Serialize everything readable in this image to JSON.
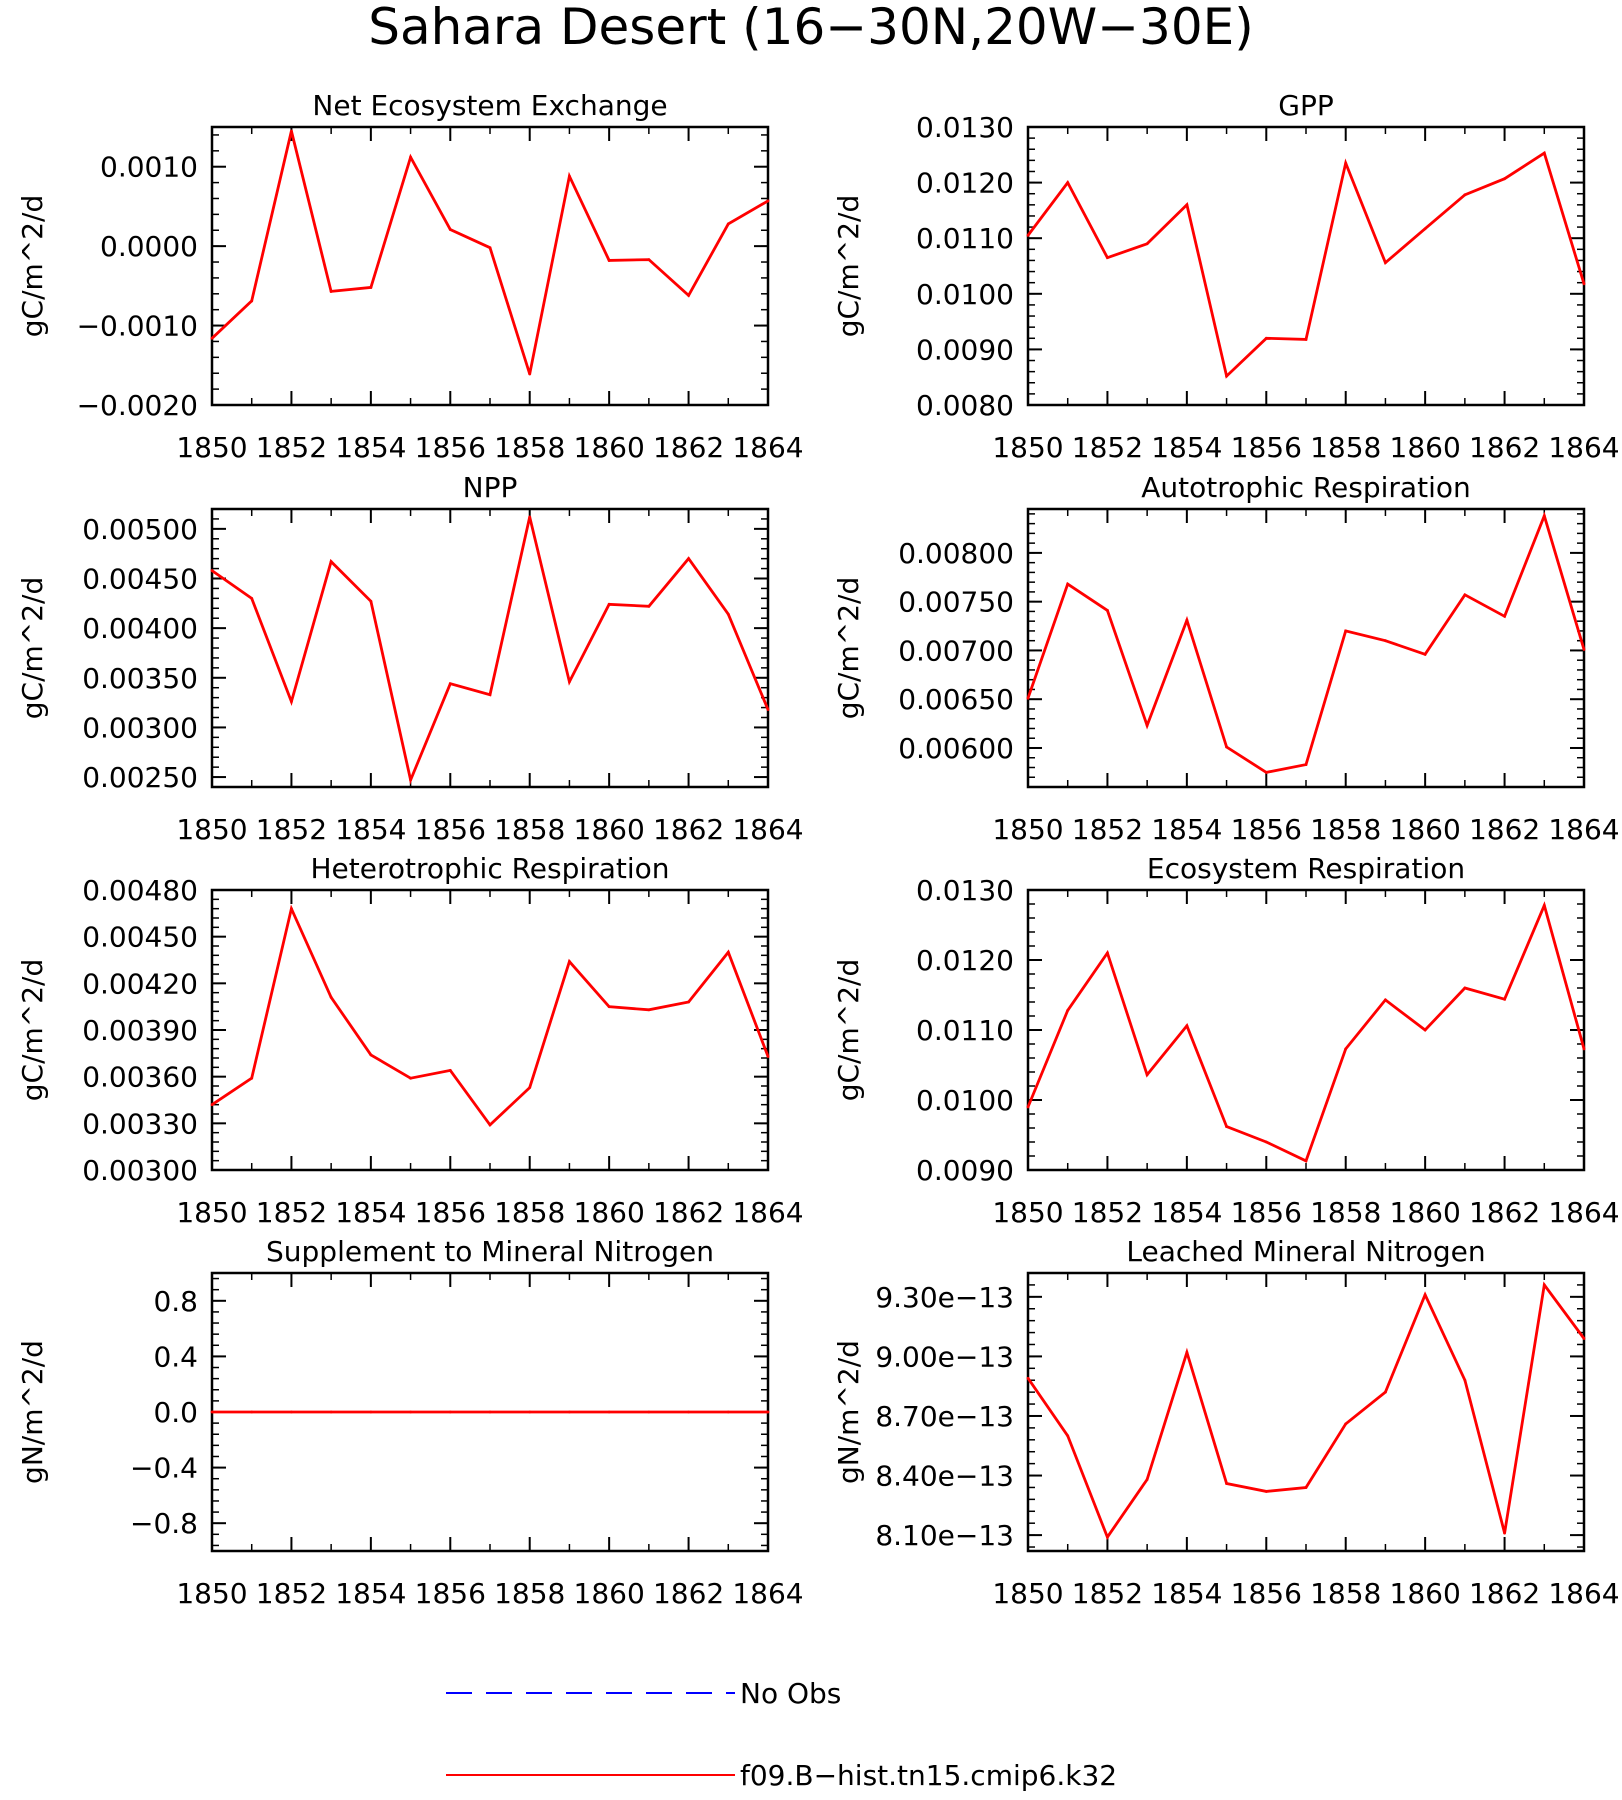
{
  "title": "Sahara Desert (16-30N,20W-30E)",
  "colors": {
    "model": "#ff0000",
    "obs": "#0000ff",
    "axis": "#000000"
  },
  "legend": {
    "placement": "bottom-center",
    "entries": [
      {
        "label": "No Obs",
        "style": "dashed",
        "color": "#0000ff"
      },
      {
        "label": "f09.B-hist.tn15.cmip6.k32",
        "style": "solid",
        "color": "#ff0000"
      }
    ]
  },
  "chart_data": [
    {
      "type": "line",
      "title": "Net Ecosystem Exchange",
      "ylabel": "gC/m^2/d",
      "x": [
        1850,
        1851,
        1852,
        1853,
        1854,
        1855,
        1856,
        1857,
        1858,
        1859,
        1860,
        1861,
        1862,
        1863,
        1864
      ],
      "xlim": [
        1850,
        1864
      ],
      "xticks": [
        "1850",
        "1852",
        "1854",
        "1856",
        "1858",
        "1860",
        "1862",
        "1864"
      ],
      "ylim": [
        -0.002,
        0.0015
      ],
      "yticks": [
        -0.002,
        -0.001,
        0.0,
        0.001
      ],
      "ytick_labels": [
        "-0.0020",
        "-0.0010",
        "0.0000",
        "0.0010"
      ],
      "series": [
        {
          "values": [
            -0.00116,
            -0.00069,
            0.00145,
            -0.00057,
            -0.00052,
            0.00112,
            0.00021,
            -2e-05,
            -0.00161,
            0.00088,
            -0.00018,
            -0.00017,
            -0.00062,
            0.00028,
            0.00057
          ]
        }
      ]
    },
    {
      "type": "line",
      "title": "GPP",
      "ylabel": "gC/m^2/d",
      "x": [
        1850,
        1851,
        1852,
        1853,
        1854,
        1855,
        1856,
        1857,
        1858,
        1859,
        1860,
        1861,
        1862,
        1863,
        1864
      ],
      "xlim": [
        1850,
        1864
      ],
      "xticks": [
        "1850",
        "1852",
        "1854",
        "1856",
        "1858",
        "1860",
        "1862",
        "1864"
      ],
      "ylim": [
        0.008,
        0.013
      ],
      "yticks": [
        0.008,
        0.009,
        0.01,
        0.011,
        0.012,
        0.013
      ],
      "ytick_labels": [
        "0.0080",
        "0.0090",
        "0.0100",
        "0.0110",
        "0.0120",
        "0.0130"
      ],
      "series": [
        {
          "values": [
            0.01105,
            0.012,
            0.01065,
            0.0109,
            0.0116,
            0.00852,
            0.0092,
            0.00918,
            0.01235,
            0.01056,
            0.01117,
            0.01178,
            0.01207,
            0.01253,
            0.01018
          ]
        }
      ]
    },
    {
      "type": "line",
      "title": "NPP",
      "ylabel": "gC/m^2/d",
      "x": [
        1850,
        1851,
        1852,
        1853,
        1854,
        1855,
        1856,
        1857,
        1858,
        1859,
        1860,
        1861,
        1862,
        1863,
        1864
      ],
      "xlim": [
        1850,
        1864
      ],
      "xticks": [
        "1850",
        "1852",
        "1854",
        "1856",
        "1858",
        "1860",
        "1862",
        "1864"
      ],
      "ylim": [
        0.0024,
        0.0052
      ],
      "yticks": [
        0.0025,
        0.003,
        0.0035,
        0.004,
        0.0045,
        0.005
      ],
      "ytick_labels": [
        "0.00250",
        "0.00300",
        "0.00350",
        "0.00400",
        "0.00450",
        "0.00500"
      ],
      "series": [
        {
          "values": [
            0.00458,
            0.0043,
            0.00326,
            0.00467,
            0.00427,
            0.00247,
            0.00344,
            0.00333,
            0.00512,
            0.00346,
            0.00424,
            0.00422,
            0.0047,
            0.00414,
            0.00318
          ]
        }
      ]
    },
    {
      "type": "line",
      "title": "Autotrophic Respiration",
      "ylabel": "gC/m^2/d",
      "x": [
        1850,
        1851,
        1852,
        1853,
        1854,
        1855,
        1856,
        1857,
        1858,
        1859,
        1860,
        1861,
        1862,
        1863,
        1864
      ],
      "xlim": [
        1850,
        1864
      ],
      "xticks": [
        "1850",
        "1852",
        "1854",
        "1856",
        "1858",
        "1860",
        "1862",
        "1864"
      ],
      "ylim": [
        0.0056,
        0.00845
      ],
      "yticks": [
        0.006,
        0.0065,
        0.007,
        0.0075,
        0.008
      ],
      "ytick_labels": [
        "0.00600",
        "0.00650",
        "0.00700",
        "0.00750",
        "0.00800"
      ],
      "series": [
        {
          "values": [
            0.00651,
            0.00768,
            0.00741,
            0.00623,
            0.00731,
            0.00601,
            0.00575,
            0.00583,
            0.0072,
            0.0071,
            0.00696,
            0.00757,
            0.00735,
            0.00838,
            0.00701
          ]
        }
      ]
    },
    {
      "type": "line",
      "title": "Heterotrophic Respiration",
      "ylabel": "gC/m^2/d",
      "x": [
        1850,
        1851,
        1852,
        1853,
        1854,
        1855,
        1856,
        1857,
        1858,
        1859,
        1860,
        1861,
        1862,
        1863,
        1864
      ],
      "xlim": [
        1850,
        1864
      ],
      "xticks": [
        "1850",
        "1852",
        "1854",
        "1856",
        "1858",
        "1860",
        "1862",
        "1864"
      ],
      "ylim": [
        0.003,
        0.0048
      ],
      "yticks": [
        0.003,
        0.0033,
        0.0036,
        0.0039,
        0.0042,
        0.0045,
        0.0048
      ],
      "ytick_labels": [
        "0.00300",
        "0.00330",
        "0.00360",
        "0.00390",
        "0.00420",
        "0.00450",
        "0.00480"
      ],
      "series": [
        {
          "values": [
            0.00342,
            0.00359,
            0.00468,
            0.00411,
            0.00374,
            0.00359,
            0.00364,
            0.00329,
            0.00353,
            0.00434,
            0.00405,
            0.00403,
            0.00408,
            0.0044,
            0.00373
          ]
        }
      ]
    },
    {
      "type": "line",
      "title": "Ecosystem Respiration",
      "ylabel": "gC/m^2/d",
      "x": [
        1850,
        1851,
        1852,
        1853,
        1854,
        1855,
        1856,
        1857,
        1858,
        1859,
        1860,
        1861,
        1862,
        1863,
        1864
      ],
      "xlim": [
        1850,
        1864
      ],
      "xticks": [
        "1850",
        "1852",
        "1854",
        "1856",
        "1858",
        "1860",
        "1862",
        "1864"
      ],
      "ylim": [
        0.009,
        0.013
      ],
      "yticks": [
        0.009,
        0.01,
        0.011,
        0.012,
        0.013
      ],
      "ytick_labels": [
        "0.0090",
        "0.0100",
        "0.0110",
        "0.0120",
        "0.0130"
      ],
      "series": [
        {
          "values": [
            0.0099,
            0.01128,
            0.0121,
            0.01036,
            0.01106,
            0.00962,
            0.0094,
            0.00913,
            0.01073,
            0.01143,
            0.011,
            0.0116,
            0.01144,
            0.01278,
            0.01073
          ]
        }
      ]
    },
    {
      "type": "line",
      "title": "Supplement to Mineral Nitrogen",
      "ylabel": "gN/m^2/d",
      "x": [
        1850,
        1851,
        1852,
        1853,
        1854,
        1855,
        1856,
        1857,
        1858,
        1859,
        1860,
        1861,
        1862,
        1863,
        1864
      ],
      "xlim": [
        1850,
        1864
      ],
      "xticks": [
        "1850",
        "1852",
        "1854",
        "1856",
        "1858",
        "1860",
        "1862",
        "1864"
      ],
      "ylim": [
        -1.0,
        1.0
      ],
      "yticks": [
        -0.8,
        -0.4,
        0.0,
        0.4,
        0.8
      ],
      "ytick_labels": [
        "-0.8",
        "-0.4",
        "0.0",
        "0.4",
        "0.8"
      ],
      "series": [
        {
          "values": [
            0,
            0,
            0,
            0,
            0,
            0,
            0,
            0,
            0,
            0,
            0,
            0,
            0,
            0,
            0
          ]
        }
      ]
    },
    {
      "type": "line",
      "title": "Leached Mineral Nitrogen",
      "ylabel": "gN/m^2/d",
      "x": [
        1850,
        1851,
        1852,
        1853,
        1854,
        1855,
        1856,
        1857,
        1858,
        1859,
        1860,
        1861,
        1862,
        1863,
        1864
      ],
      "xlim": [
        1850,
        1864
      ],
      "xticks": [
        "1850",
        "1852",
        "1854",
        "1856",
        "1858",
        "1860",
        "1862",
        "1864"
      ],
      "ylim": [
        8.02e-13,
        9.42e-13
      ],
      "yticks": [
        8.1e-13,
        8.4e-13,
        8.7e-13,
        9e-13,
        9.3e-13
      ],
      "ytick_labels": [
        "8.10e-13",
        "8.40e-13",
        "8.70e-13",
        "9.00e-13",
        "9.30e-13"
      ],
      "series": [
        {
          "values": [
            8.89e-13,
            8.6e-13,
            8.09e-13,
            8.38e-13,
            9.02e-13,
            8.36e-13,
            8.32e-13,
            8.34e-13,
            8.66e-13,
            8.82e-13,
            9.31e-13,
            8.88e-13,
            8.11e-13,
            9.36e-13,
            9.09e-13
          ]
        }
      ]
    }
  ]
}
